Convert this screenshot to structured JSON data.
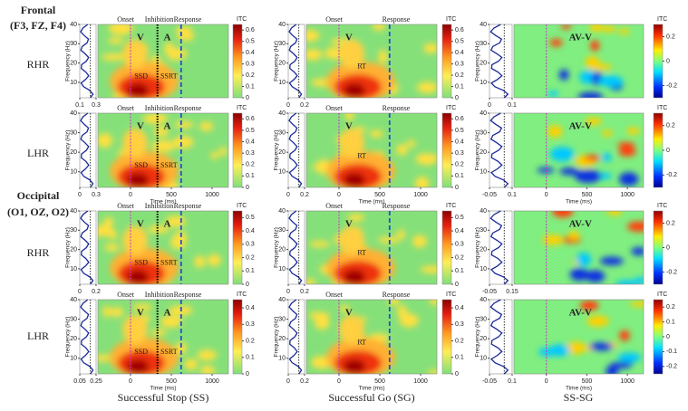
{
  "columns": [
    "Successful Stop (SS)",
    "Successful Go (SG)",
    "SS-SG"
  ],
  "groups": [
    {
      "title": "Frontal",
      "channels": "(F3, FZ, F4)",
      "rows": [
        {
          "label": "RHR",
          "panels": [
            {
              "ylabel": "Frequency (Hz)",
              "ylim": [
                2,
                40
              ],
              "yticks": [
                10,
                20,
                30,
                40
              ],
              "xlim": [
                -400,
                1200
              ],
              "profile_xticks": [
                0.1,
                0.3
              ],
              "cbar_label": "ITC",
              "clim": [
                0,
                0.65
              ],
              "cticks": [
                0,
                0.1,
                0.2,
                0.3,
                0.4,
                0.5,
                0.6
              ],
              "annotations": {
                "onset": "Onset",
                "inhibition": "Inhibition",
                "response": "Response",
                "v": "V",
                "a": "A",
                "ssd": "SSD",
                "ssrt": "SSRT"
              }
            },
            {
              "ylabel": "Frequency (Hz)",
              "ylim": [
                2,
                40
              ],
              "yticks": [
                10,
                20,
                30,
                40
              ],
              "xlim": [
                -400,
                1200
              ],
              "profile_xticks": [
                0,
                0.2
              ],
              "cbar_label": "ITC",
              "clim": [
                0,
                0.65
              ],
              "cticks": [
                0,
                0.1,
                0.2,
                0.3,
                0.4,
                0.5,
                0.6
              ],
              "annotations": {
                "onset": "Onset",
                "response": "Response",
                "v": "V",
                "rt": "RT"
              }
            },
            {
              "ylabel": "Frequency (Hz)",
              "ylim": [
                2,
                40
              ],
              "yticks": [
                10,
                20,
                30,
                40
              ],
              "xlim": [
                -400,
                1200
              ],
              "profile_xticks": [
                0,
                0.1
              ],
              "cbar_label": "ITC",
              "clim": [
                -0.3,
                0.3
              ],
              "cticks": [
                -0.2,
                0,
                0.2
              ],
              "annotations": {
                "av": "AV-V"
              }
            }
          ]
        },
        {
          "label": "LHR",
          "panels": [
            {
              "ylabel": "Frequency (Hz)",
              "ylim": [
                2,
                40
              ],
              "yticks": [
                10,
                20,
                30,
                40
              ],
              "xlim": [
                -400,
                1200
              ],
              "xticks": [
                0,
                500,
                1000
              ],
              "xlabel": "Time (ms)",
              "profile_xticks": [
                0,
                0.3
              ],
              "cbar_label": "ITC",
              "clim": [
                0,
                0.65
              ],
              "cticks": [
                0,
                0.1,
                0.2,
                0.3,
                0.4,
                0.5,
                0.6
              ],
              "annotations": {
                "onset": "Onset",
                "inhibition": "Inhibition",
                "response": "Response",
                "v": "V",
                "a": "A",
                "ssd": "SSD",
                "ssrt": "SSRT"
              }
            },
            {
              "ylabel": "Frequency (Hz)",
              "ylim": [
                2,
                40
              ],
              "yticks": [
                10,
                20,
                30,
                40
              ],
              "xlim": [
                -400,
                1200
              ],
              "xticks": [
                0,
                500,
                1000
              ],
              "xlabel": "Time (ms)",
              "profile_xticks": [
                0,
                0.2
              ],
              "cbar_label": "ITC",
              "clim": [
                0,
                0.65
              ],
              "cticks": [
                0,
                0.1,
                0.2,
                0.3,
                0.4,
                0.5,
                0.6
              ],
              "annotations": {
                "onset": "Onset",
                "response": "Response",
                "v": "V",
                "rt": "RT"
              }
            },
            {
              "ylabel": "Frequency (Hz)",
              "ylim": [
                2,
                40
              ],
              "yticks": [
                10,
                20,
                30,
                40
              ],
              "xlim": [
                -400,
                1200
              ],
              "xticks": [
                0,
                500,
                1000
              ],
              "xlabel": "Time (ms)",
              "profile_xticks": [
                -0.05,
                0.1
              ],
              "cbar_label": "ITC",
              "clim": [
                -0.3,
                0.3
              ],
              "cticks": [
                -0.2,
                0,
                0.2
              ],
              "annotations": {
                "av": "AV-V"
              }
            }
          ]
        }
      ]
    },
    {
      "title": "Occipital",
      "channels": "(O1, OZ, O2)",
      "rows": [
        {
          "label": "RHR",
          "panels": [
            {
              "ylabel": "Frequency (Hz)",
              "ylim": [
                2,
                40
              ],
              "yticks": [
                10,
                20,
                30,
                40
              ],
              "xlim": [
                -400,
                1200
              ],
              "profile_xticks": [
                0,
                0.2
              ],
              "cbar_label": "ITC",
              "clim": [
                0,
                0.55
              ],
              "cticks": [
                0,
                0.1,
                0.2,
                0.3,
                0.4,
                0.5
              ],
              "annotations": {
                "onset": "Onset",
                "inhibition": "Inhibition",
                "response": "Response",
                "v": "V",
                "a": "A",
                "ssd": "SSD",
                "ssrt": "SSRT"
              }
            },
            {
              "ylabel": "Frequency (Hz)",
              "ylim": [
                2,
                40
              ],
              "yticks": [
                10,
                20,
                30,
                40
              ],
              "xlim": [
                -400,
                1200
              ],
              "profile_xticks": [
                0,
                0.2
              ],
              "cbar_label": "ITC",
              "clim": [
                0,
                0.55
              ],
              "cticks": [
                0,
                0.1,
                0.2,
                0.3,
                0.4,
                0.5
              ],
              "annotations": {
                "onset": "Onset",
                "response": "Response",
                "v": "V",
                "rt": "RT"
              }
            },
            {
              "ylabel": "Frequency (Hz)",
              "ylim": [
                2,
                40
              ],
              "yticks": [
                10,
                20,
                30,
                40
              ],
              "xlim": [
                -400,
                1200
              ],
              "profile_xticks": [
                -0.05,
                0.15
              ],
              "cbar_label": "ITC",
              "clim": [
                -0.3,
                0.3
              ],
              "cticks": [
                -0.2,
                0,
                0.2
              ],
              "annotations": {
                "av": "AV-V"
              }
            }
          ]
        },
        {
          "label": "LHR",
          "panels": [
            {
              "ylabel": "Frequency (Hz)",
              "ylim": [
                2,
                40
              ],
              "yticks": [
                10,
                20,
                30,
                40
              ],
              "xlim": [
                -400,
                1200
              ],
              "xticks": [
                0,
                500,
                1000
              ],
              "xlabel": "Time (ms)",
              "profile_xticks": [
                0.05,
                0.25
              ],
              "cbar_label": "ITC",
              "clim": [
                0,
                0.45
              ],
              "cticks": [
                0,
                0.1,
                0.2,
                0.3,
                0.4
              ],
              "annotations": {
                "onset": "Onset",
                "inhibition": "Inhibition",
                "response": "Response",
                "v": "V",
                "a": "A",
                "ssd": "SSD",
                "ssrt": "SSRT"
              }
            },
            {
              "ylabel": "Frequency (Hz)",
              "ylim": [
                2,
                40
              ],
              "yticks": [
                10,
                20,
                30,
                40
              ],
              "xlim": [
                -400,
                1200
              ],
              "xticks": [
                0,
                500,
                1000
              ],
              "xlabel": "Time (ms)",
              "profile_xticks": [
                0,
                0.2
              ],
              "cbar_label": "ITC",
              "clim": [
                0,
                0.45
              ],
              "cticks": [
                0,
                0.1,
                0.2,
                0.3,
                0.4
              ],
              "annotations": {
                "onset": "Onset",
                "response": "Response",
                "v": "V",
                "rt": "RT"
              }
            },
            {
              "ylabel": "Frequency (Hz)",
              "ylim": [
                2,
                40
              ],
              "yticks": [
                10,
                20,
                30,
                40
              ],
              "xlim": [
                -400,
                1200
              ],
              "xticks": [
                0,
                500,
                1000
              ],
              "xlabel": "Time (ms)",
              "profile_xticks": [
                -0.05,
                0.1
              ],
              "cbar_label": "ITC",
              "clim": [
                -0.25,
                0.25
              ],
              "cticks": [
                -0.2,
                -0.1,
                0,
                0.1,
                0.2
              ],
              "annotations": {
                "av": "AV-V"
              }
            }
          ]
        }
      ]
    }
  ]
}
